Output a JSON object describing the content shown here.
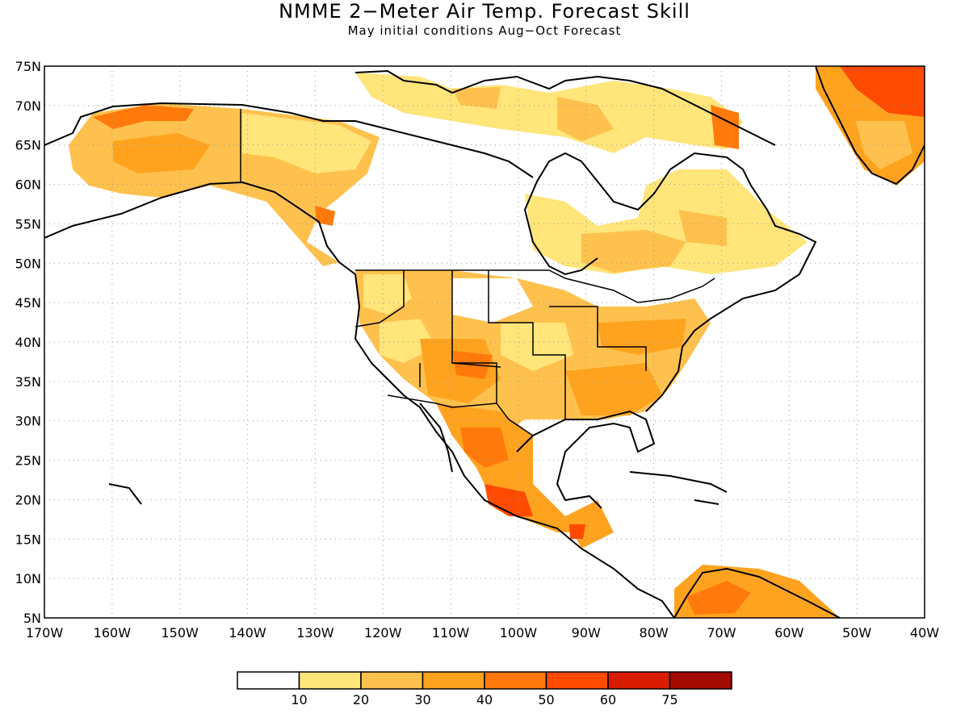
{
  "title": "NMME 2−Meter Air Temp. Forecast Skill",
  "subtitle": "May initial conditions  Aug−Oct Forecast",
  "map": {
    "lon_range": [
      -170,
      -40
    ],
    "lat_range": [
      5,
      75
    ],
    "lat_ticks": [
      "75N",
      "70N",
      "65N",
      "60N",
      "55N",
      "50N",
      "45N",
      "40N",
      "35N",
      "30N",
      "25N",
      "20N",
      "15N",
      "10N",
      "5N"
    ],
    "lon_ticks": [
      "170W",
      "160W",
      "150W",
      "140W",
      "130W",
      "120W",
      "110W",
      "100W",
      "90W",
      "80W",
      "70W",
      "60W",
      "50W",
      "40W"
    ],
    "grid": "dotted"
  },
  "legend": {
    "colors": [
      "#ffffff",
      "#ffe57a",
      "#ffc14d",
      "#ffa31f",
      "#ff7a0a",
      "#ff4a00",
      "#d91c00",
      "#a30a00"
    ],
    "labels": [
      "10",
      "20",
      "30",
      "40",
      "50",
      "60",
      "75"
    ]
  }
}
